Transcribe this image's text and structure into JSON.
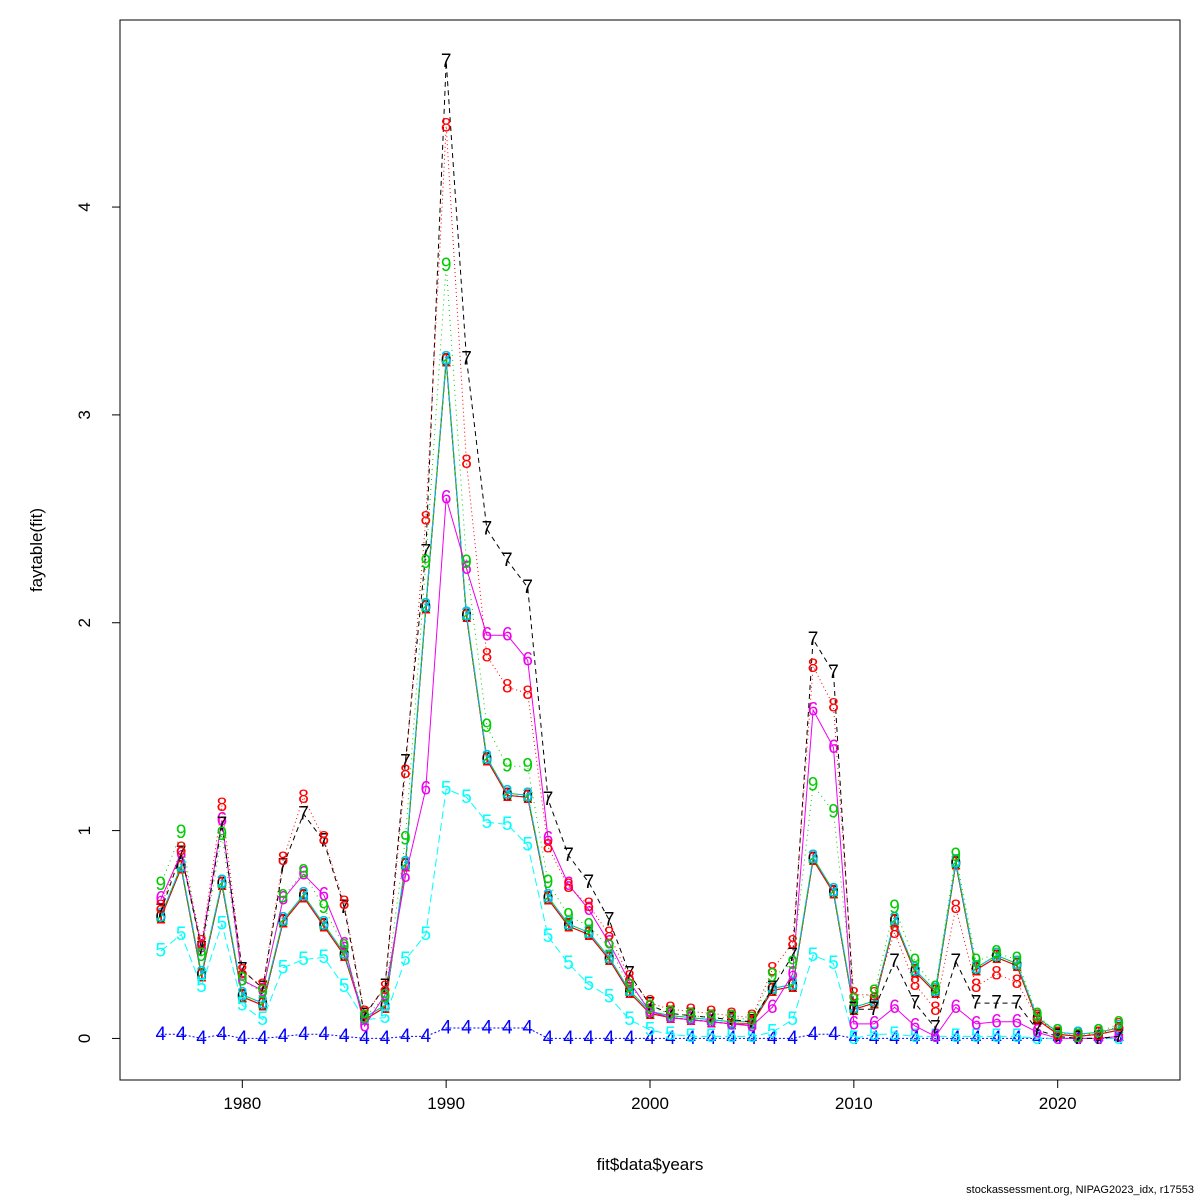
{
  "chart_data": {
    "type": "line",
    "xlabel": "fit$data$years",
    "ylabel": "faytable(fit)",
    "xlim": [
      1974,
      2026
    ],
    "ylim": [
      -0.2,
      4.9
    ],
    "xticks": [
      1980,
      1990,
      2000,
      2010,
      2020
    ],
    "yticks": [
      0,
      1,
      2,
      3,
      4
    ],
    "grid": false,
    "legend": "none",
    "x": [
      1976,
      1977,
      1978,
      1979,
      1980,
      1981,
      1982,
      1983,
      1984,
      1985,
      1986,
      1987,
      1988,
      1989,
      1990,
      1991,
      1992,
      1993,
      1994,
      1995,
      1996,
      1997,
      1998,
      1999,
      2000,
      2001,
      2002,
      2003,
      2004,
      2005,
      2006,
      2007,
      2008,
      2009,
      2010,
      2011,
      2012,
      2013,
      2014,
      2015,
      2016,
      2017,
      2018,
      2019,
      2020,
      2021,
      2022,
      2023
    ],
    "series": [
      {
        "name": "0",
        "color": "#000000",
        "dash": "none",
        "values": [
          0.58,
          0.82,
          0.3,
          0.74,
          0.2,
          0.16,
          0.56,
          0.68,
          0.54,
          0.4,
          0.09,
          0.15,
          0.83,
          2.07,
          3.26,
          2.03,
          1.34,
          1.17,
          1.16,
          0.67,
          0.54,
          0.5,
          0.38,
          0.22,
          0.12,
          0.1,
          0.09,
          0.08,
          0.07,
          0.07,
          0.23,
          0.25,
          0.86,
          0.7,
          0.14,
          0.17,
          0.56,
          0.32,
          0.22,
          0.84,
          0.33,
          0.39,
          0.35,
          0.09,
          0.02,
          0.01,
          0.02,
          0.04
        ]
      },
      {
        "name": "1",
        "color": "#ff0000",
        "dash": "none",
        "values": [
          0.58,
          0.82,
          0.3,
          0.74,
          0.2,
          0.16,
          0.56,
          0.68,
          0.54,
          0.4,
          0.09,
          0.15,
          0.83,
          2.07,
          3.26,
          2.03,
          1.34,
          1.17,
          1.16,
          0.67,
          0.54,
          0.5,
          0.38,
          0.22,
          0.12,
          0.1,
          0.09,
          0.08,
          0.07,
          0.07,
          0.23,
          0.25,
          0.86,
          0.7,
          0.14,
          0.17,
          0.56,
          0.32,
          0.22,
          0.84,
          0.33,
          0.39,
          0.35,
          0.09,
          0.02,
          0.01,
          0.02,
          0.04
        ]
      },
      {
        "name": "2",
        "color": "#00cd00",
        "dash": "none",
        "values": [
          0.59,
          0.83,
          0.31,
          0.75,
          0.21,
          0.17,
          0.57,
          0.69,
          0.55,
          0.41,
          0.1,
          0.16,
          0.84,
          2.08,
          3.27,
          2.04,
          1.35,
          1.18,
          1.17,
          0.68,
          0.55,
          0.51,
          0.39,
          0.23,
          0.13,
          0.11,
          0.1,
          0.09,
          0.08,
          0.08,
          0.24,
          0.26,
          0.87,
          0.71,
          0.15,
          0.18,
          0.57,
          0.33,
          0.23,
          0.85,
          0.34,
          0.4,
          0.36,
          0.1,
          0.03,
          0.02,
          0.03,
          0.05
        ]
      },
      {
        "name": "3",
        "color": "#00bfff",
        "dash": "8,3,2,3",
        "values": [
          0.59,
          0.83,
          0.31,
          0.75,
          0.21,
          0.17,
          0.57,
          0.69,
          0.55,
          0.41,
          0.1,
          0.16,
          0.84,
          2.08,
          3.27,
          2.04,
          1.35,
          1.18,
          1.17,
          0.68,
          0.55,
          0.51,
          0.39,
          0.23,
          0.13,
          0.11,
          0.1,
          0.09,
          0.08,
          0.08,
          0.24,
          0.26,
          0.87,
          0.71,
          0.15,
          0.18,
          0.57,
          0.33,
          0.23,
          0.85,
          0.34,
          0.4,
          0.36,
          0.1,
          0.03,
          0.02,
          0.03,
          0.05
        ]
      },
      {
        "name": "4",
        "color": "#0000ff",
        "dash": "2,2",
        "values": [
          0.02,
          0.02,
          0.0,
          0.02,
          0.0,
          0.0,
          0.01,
          0.02,
          0.02,
          0.01,
          0.0,
          0.0,
          0.01,
          0.01,
          0.05,
          0.05,
          0.05,
          0.05,
          0.05,
          0.0,
          0.0,
          0.0,
          0.0,
          0.0,
          0.0,
          0.0,
          0.0,
          0.0,
          0.0,
          0.0,
          0.0,
          0.0,
          0.02,
          0.02,
          0.0,
          0.0,
          0.0,
          0.0,
          0.0,
          0.0,
          0.0,
          0.0,
          0.0,
          0.0,
          0.0,
          0.0,
          0.0,
          0.0
        ]
      },
      {
        "name": "5",
        "color": "#00ffff",
        "dash": "8,4",
        "values": [
          0.42,
          0.5,
          0.25,
          0.55,
          0.16,
          0.09,
          0.34,
          0.38,
          0.39,
          0.25,
          0.09,
          0.1,
          0.38,
          0.5,
          1.2,
          1.16,
          1.04,
          1.03,
          0.93,
          0.49,
          0.36,
          0.26,
          0.2,
          0.09,
          0.04,
          0.02,
          0.01,
          0.01,
          0.01,
          0.01,
          0.03,
          0.09,
          0.4,
          0.36,
          0.0,
          0.02,
          0.02,
          0.01,
          0.01,
          0.01,
          0.01,
          0.01,
          0.01,
          0.0,
          0.0,
          0.0,
          0.0,
          0.0
        ]
      },
      {
        "name": "6",
        "color": "#ee00ee",
        "dash": "none",
        "values": [
          0.67,
          0.89,
          0.44,
          1.05,
          0.28,
          0.23,
          0.67,
          0.79,
          0.69,
          0.45,
          0.06,
          0.21,
          0.78,
          1.2,
          2.6,
          2.26,
          1.94,
          1.94,
          1.82,
          0.96,
          0.74,
          0.62,
          0.46,
          0.27,
          0.13,
          0.1,
          0.09,
          0.08,
          0.07,
          0.06,
          0.15,
          0.31,
          1.58,
          1.4,
          0.07,
          0.07,
          0.15,
          0.06,
          0.01,
          0.15,
          0.07,
          0.08,
          0.08,
          0.03,
          0.0,
          0.0,
          0.0,
          0.01
        ]
      },
      {
        "name": "7",
        "color": "#000000",
        "dash": "5,4",
        "values": [
          0.61,
          0.89,
          0.43,
          1.03,
          0.33,
          0.24,
          0.83,
          1.08,
          0.95,
          0.63,
          0.11,
          0.25,
          1.33,
          2.34,
          4.7,
          3.27,
          2.45,
          2.3,
          2.17,
          1.15,
          0.88,
          0.75,
          0.57,
          0.31,
          0.16,
          0.12,
          0.11,
          0.1,
          0.09,
          0.08,
          0.24,
          0.4,
          1.92,
          1.76,
          0.14,
          0.14,
          0.37,
          0.17,
          0.05,
          0.37,
          0.17,
          0.17,
          0.17,
          0.04,
          0.01,
          0.0,
          0.0,
          0.01
        ]
      },
      {
        "name": "8",
        "color": "#ff0000",
        "dash": "1,3",
        "values": [
          0.63,
          0.91,
          0.46,
          1.12,
          0.32,
          0.25,
          0.86,
          1.16,
          0.96,
          0.65,
          0.12,
          0.24,
          1.28,
          2.5,
          4.39,
          2.77,
          1.84,
          1.69,
          1.66,
          0.92,
          0.73,
          0.64,
          0.5,
          0.29,
          0.17,
          0.14,
          0.13,
          0.12,
          0.11,
          0.1,
          0.33,
          0.46,
          1.79,
          1.6,
          0.21,
          0.21,
          0.51,
          0.26,
          0.14,
          0.63,
          0.25,
          0.31,
          0.27,
          0.1,
          0.02,
          0.01,
          0.02,
          0.06
        ]
      },
      {
        "name": "9",
        "color": "#00cd00",
        "dash": "1,4",
        "values": [
          0.74,
          0.99,
          0.4,
          0.98,
          0.28,
          0.22,
          0.68,
          0.8,
          0.63,
          0.44,
          0.1,
          0.2,
          0.96,
          2.29,
          3.72,
          2.29,
          1.5,
          1.31,
          1.31,
          0.75,
          0.59,
          0.54,
          0.44,
          0.25,
          0.15,
          0.12,
          0.11,
          0.1,
          0.1,
          0.09,
          0.3,
          0.36,
          1.22,
          1.09,
          0.18,
          0.22,
          0.63,
          0.37,
          0.24,
          0.88,
          0.37,
          0.41,
          0.38,
          0.11,
          0.03,
          0.01,
          0.03,
          0.07
        ]
      }
    ]
  },
  "footer": "stockassessment.org, NIPAG2023_idx, r17553"
}
